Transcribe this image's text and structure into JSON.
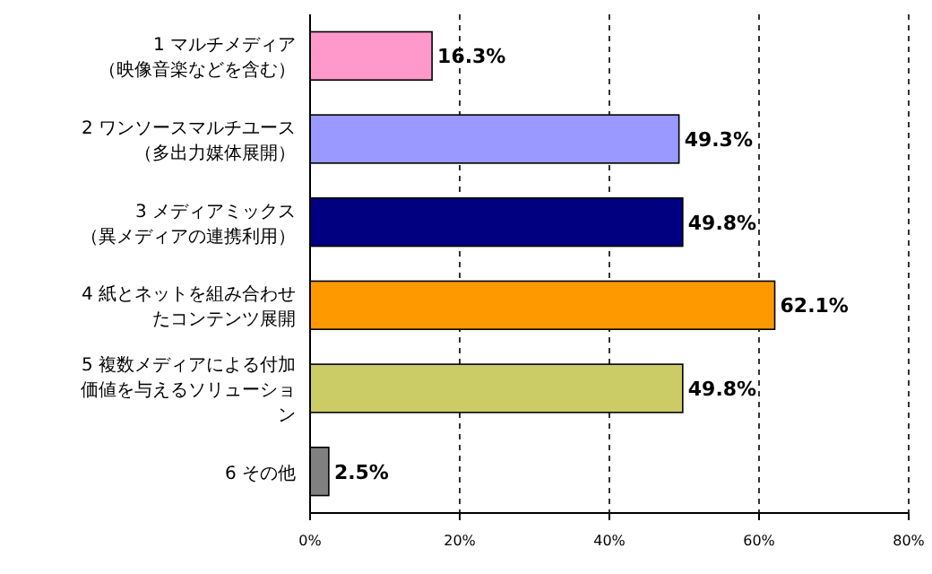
{
  "chart_data": {
    "type": "bar",
    "orientation": "horizontal",
    "categories": [
      "1 マルチメディア（映像音楽などを含む）",
      "2 ワンソースマルチユース（多出力媒体展開）",
      "3 メディアミックス（異メディアの連携利用）",
      "4 紙とネットを組み合わせたコンテンツ展開",
      "5 複数メディアによる付加価値を与えるソリューション",
      "6 その他"
    ],
    "values": [
      16.3,
      49.3,
      49.8,
      62.1,
      49.8,
      2.5
    ],
    "colors": [
      "#ff99cc",
      "#9999ff",
      "#000080",
      "#ff9900",
      "#cccc66",
      "#808080"
    ],
    "value_labels": [
      "16.3%",
      "49.3%",
      "49.8%",
      "62.1%",
      "49.8%",
      "2.5%"
    ],
    "xlim": [
      0,
      80
    ],
    "xticks": [
      {
        "value": 0,
        "label": "0%"
      },
      {
        "value": 20,
        "label": "20%"
      },
      {
        "value": 40,
        "label": "40%"
      },
      {
        "value": 60,
        "label": "60%"
      },
      {
        "value": 80,
        "label": "80%"
      }
    ],
    "grid": "x"
  }
}
